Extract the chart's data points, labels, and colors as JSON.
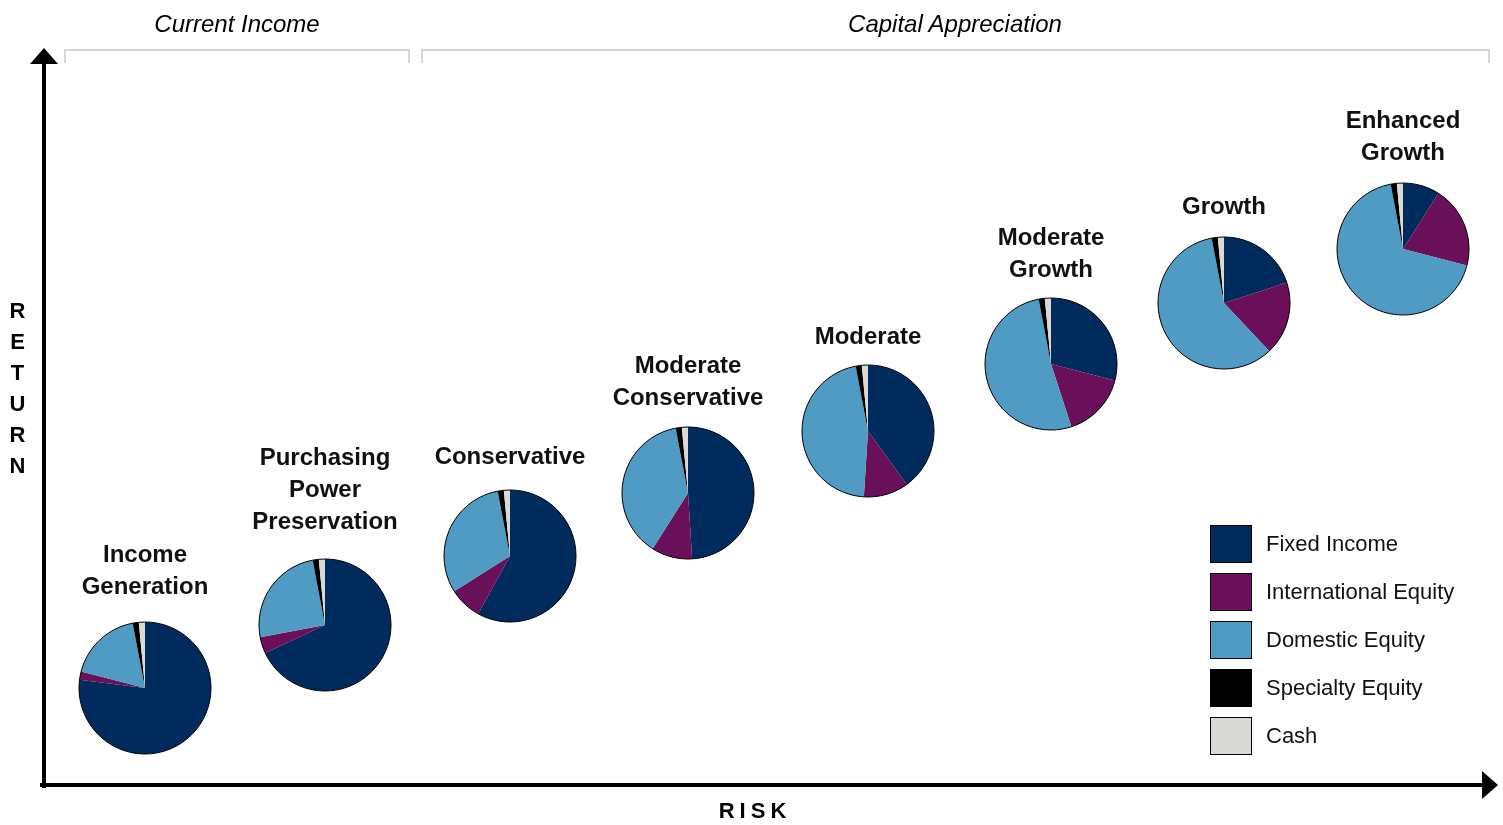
{
  "chart_data": [
    {
      "type": "other",
      "xlabel": "RISK",
      "ylabel": "RETURN",
      "annotations": [
        "Current Income",
        "Capital Appreciation"
      ]
    },
    {
      "type": "pie",
      "title": "Income Generation",
      "categories": [
        "Fixed Income",
        "International Equity",
        "Domestic Equity",
        "Specialty Equity",
        "Cash"
      ],
      "values": [
        77,
        2,
        18,
        1.5,
        1.5
      ],
      "colors": [
        "#002b5c",
        "#6a0f5a",
        "#4f9bc4",
        "#000000",
        "#d9d9d6"
      ],
      "legend": "right"
    },
    {
      "type": "pie",
      "title": "Purchasing Power Preservation",
      "categories": [
        null,
        null,
        null,
        null,
        null
      ],
      "values": [
        68,
        4,
        25,
        1.5,
        1.5
      ],
      "colors": [
        "#002b5c",
        "#6a0f5a",
        "#4f9bc4",
        "#000000",
        "#d9d9d6"
      ]
    },
    {
      "type": "pie",
      "title": "Conservative",
      "categories": [
        null,
        null,
        null,
        null,
        null
      ],
      "values": [
        58,
        8,
        31,
        1.5,
        1.5
      ],
      "colors": [
        "#002b5c",
        "#6a0f5a",
        "#4f9bc4",
        "#000000",
        "#d9d9d6"
      ]
    },
    {
      "type": "pie",
      "title": "Moderate Conservative",
      "categories": [
        null,
        null,
        null,
        null,
        null
      ],
      "values": [
        49,
        10,
        38,
        1.5,
        1.5
      ],
      "colors": [
        "#002b5c",
        "#6a0f5a",
        "#4f9bc4",
        "#000000",
        "#d9d9d6"
      ]
    },
    {
      "type": "pie",
      "title": "Moderate",
      "categories": [
        null,
        null,
        null,
        null,
        null
      ],
      "values": [
        40,
        11,
        46,
        1.5,
        1.5
      ],
      "colors": [
        "#002b5c",
        "#6a0f5a",
        "#4f9bc4",
        "#000000",
        "#d9d9d6"
      ]
    },
    {
      "type": "pie",
      "title": "Moderate Growth",
      "categories": [
        null,
        null,
        null,
        null,
        null
      ],
      "values": [
        29,
        16,
        52,
        1.5,
        1.5
      ],
      "colors": [
        "#002b5c",
        "#6a0f5a",
        "#4f9bc4",
        "#000000",
        "#d9d9d6"
      ]
    },
    {
      "type": "pie",
      "title": "Growth",
      "categories": [
        null,
        null,
        null,
        null,
        null
      ],
      "values": [
        20,
        18,
        59,
        1.5,
        1.5
      ],
      "colors": [
        "#002b5c",
        "#6a0f5a",
        "#4f9bc4",
        "#000000",
        "#d9d9d6"
      ]
    },
    {
      "type": "pie",
      "title": "Enhanced Growth",
      "categories": [
        null,
        null,
        null,
        null,
        null
      ],
      "values": [
        9,
        20,
        68,
        1.5,
        1.5
      ],
      "colors": [
        "#002b5c",
        "#6a0f5a",
        "#4f9bc4",
        "#000000",
        "#d9d9d6"
      ]
    }
  ]
}
